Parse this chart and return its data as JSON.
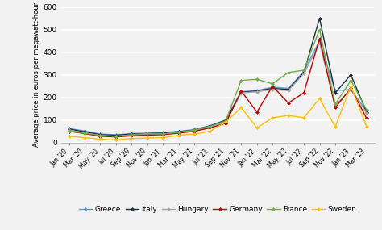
{
  "title": "",
  "ylabel": "Average price in euros per megawatt-hour",
  "ylim": [
    0,
    600
  ],
  "yticks": [
    0,
    100,
    200,
    300,
    400,
    500,
    600
  ],
  "background_color": "#f2f2f2",
  "plot_bg_color": "#f2f2f2",
  "grid_color": "#ffffff",
  "x_labels": [
    "Jan '20",
    "Mar '20",
    "May '20",
    "Jul '20",
    "Sep '20",
    "Nov '20",
    "Jan '21",
    "Mar '21",
    "May '21",
    "Jul '21",
    "Sep '21",
    "Nov '21",
    "Jan '22",
    "Mar '22",
    "May '22",
    "Jul '22",
    "Sep '22",
    "Nov '22",
    "Jan '23",
    "Mar '23"
  ],
  "series": {
    "Greece": {
      "color": "#5b9bd5",
      "values": [
        62,
        52,
        38,
        35,
        40,
        42,
        45,
        50,
        58,
        75,
        100,
        225,
        230,
        245,
        240,
        315,
        450,
        230,
        235,
        140
      ]
    },
    "Italy": {
      "color": "#1f2d3d",
      "values": [
        60,
        48,
        35,
        32,
        38,
        40,
        42,
        48,
        55,
        73,
        98,
        222,
        228,
        240,
        235,
        310,
        550,
        220,
        300,
        135
      ]
    },
    "Hungary": {
      "color": "#a6a6a6",
      "values": [
        55,
        43,
        30,
        28,
        33,
        37,
        38,
        45,
        52,
        70,
        90,
        220,
        225,
        235,
        230,
        305,
        440,
        165,
        235,
        130
      ]
    },
    "Germany": {
      "color": "#c00000",
      "values": [
        50,
        40,
        28,
        25,
        30,
        33,
        35,
        42,
        50,
        65,
        85,
        228,
        135,
        250,
        175,
        220,
        460,
        155,
        240,
        108
      ]
    },
    "France": {
      "color": "#70ad47",
      "values": [
        52,
        42,
        32,
        28,
        35,
        40,
        38,
        46,
        55,
        72,
        95,
        275,
        280,
        260,
        310,
        320,
        500,
        170,
        275,
        145
      ]
    },
    "Sweden": {
      "color": "#ffc000",
      "values": [
        28,
        22,
        15,
        12,
        18,
        20,
        22,
        32,
        38,
        50,
        90,
        155,
        65,
        110,
        120,
        110,
        195,
        70,
        250,
        70
      ]
    }
  },
  "legend_order": [
    "Greece",
    "Italy",
    "Hungary",
    "Germany",
    "France",
    "Sweden"
  ]
}
